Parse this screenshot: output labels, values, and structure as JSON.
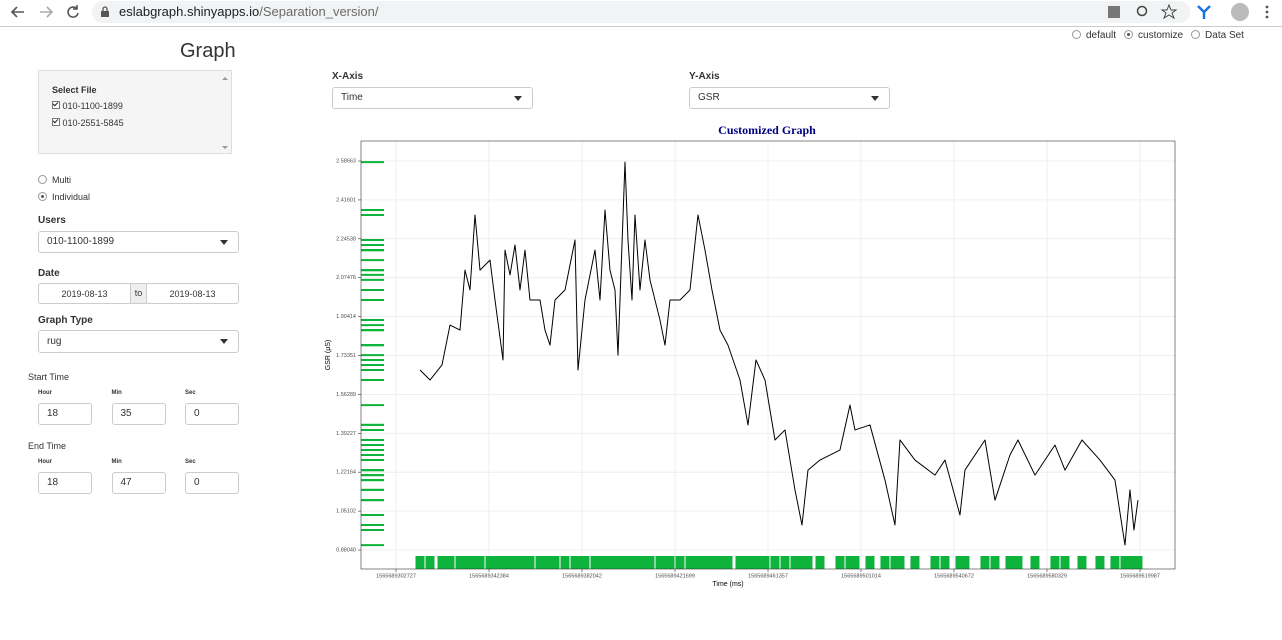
{
  "browser": {
    "url_host": "eslabgraph.shinyapps.io",
    "url_path": "/Separation_version/"
  },
  "mode_options": [
    "default",
    "customize",
    "Data Set"
  ],
  "mode_selected": 1,
  "sidebar": {
    "title": "Graph",
    "select_file_label": "Select File",
    "files": [
      "010-1100-1899",
      "010-2551-5845"
    ],
    "view_options": [
      "Multi",
      "Individual"
    ],
    "view_selected": 1,
    "users_label": "Users",
    "users_value": "010-1100-1899",
    "date_label": "Date",
    "date_from": "2019-08-13",
    "date_sep": "to",
    "date_to": "2019-08-13",
    "graph_type_label": "Graph Type",
    "graph_type_value": "rug",
    "start_time": {
      "label": "Start Time",
      "fields": [
        "Hour",
        "Min",
        "Sec"
      ],
      "values": [
        18,
        35,
        0
      ]
    },
    "end_time": {
      "label": "End Time",
      "fields": [
        "Hour",
        "Min",
        "Sec"
      ],
      "values": [
        18,
        47,
        0
      ]
    }
  },
  "x_axis_label": "X-Axis",
  "x_axis_value": "Time",
  "y_axis_label": "Y-Axis",
  "y_axis_value": "GSR",
  "chart_data": {
    "type": "line",
    "title": "Customized Graph",
    "x_label": "Time (ms)",
    "y_label": "GSR (µS)",
    "color": "#000000",
    "rug": true,
    "rug_color": "#0db33a",
    "grid": true,
    "x": [
      1565689312961,
      1565689317225,
      1565689322341,
      1565689325753,
      1565689330017,
      1565689332149,
      1565689334281,
      1565689336413,
      1565689338545,
      1565689342809,
      1565689344941,
      1565689348352,
      1565689349205,
      1565689351337,
      1565689353469,
      1565689355601,
      1565689357733,
      1565689359865,
      1565689364129,
      1565689366261,
      1565689368393,
      1565689370525,
      1565689374789,
      1565689379053,
      1565689380332,
      1565689383317,
      1565689387581,
      1565689389713,
      1565689391845,
      1565689393977,
      1565689396109,
      1565689397388,
      1565689400373,
      1565689401652,
      1565689403357,
      1565689404637,
      1565689406769,
      1565689408901,
      1565689411033,
      1565689415297,
      1565689417429,
      1565689419561,
      1565689423825,
      1565689428089,
      1565689431500,
      1565689434485,
      1565689437469,
      1565689440881,
      1565689444292,
      1565689449409,
      1565689452820,
      1565689456231,
      1565689460069,
      1565689464333,
      1565689468597,
      1565689472861,
      1565689475845,
      1565689478404,
      1565689483521,
      1565689492049,
      1565689496313,
      1565689498445,
      1565689504841,
      1565689511237,
      1565689515501,
      1565689517633,
      1565689524029,
      1565689532557,
      1565689536821,
      1565689543217,
      1565689545349,
      1565689553877,
      1565689558141,
      1565689564537,
      1565689567948,
      1565689575197,
      1565689583725,
      1565689587989,
      1565689595237,
      1565689602913,
      1565689609309,
      1565689613573,
      1565689615705,
      1565689617410,
      1565689619116
    ],
    "values": [
      1.67,
      1.626,
      1.692,
      1.867,
      1.845,
      2.108,
      2.021,
      2.35,
      2.108,
      2.152,
      1.977,
      1.714,
      2.196,
      2.087,
      2.218,
      2.021,
      2.196,
      1.977,
      1.977,
      1.845,
      1.779,
      1.977,
      2.021,
      2.24,
      1.67,
      1.977,
      2.196,
      1.977,
      2.372,
      2.108,
      2.021,
      1.735,
      2.582,
      2.24,
      1.977,
      2.35,
      2.021,
      2.24,
      2.065,
      1.889,
      1.779,
      1.977,
      1.977,
      2.021,
      2.35,
      2.196,
      2.021,
      1.845,
      1.779,
      1.626,
      1.429,
      1.714,
      1.626,
      1.363,
      1.407,
      1.144,
      0.99,
      1.231,
      1.275,
      1.319,
      1.516,
      1.407,
      1.429,
      1.187,
      0.99,
      1.363,
      1.275,
      1.209,
      1.275,
      1.034,
      1.231,
      1.363,
      1.099,
      1.297,
      1.363,
      1.209,
      1.341,
      1.231,
      1.363,
      1.275,
      1.187,
      0.902,
      1.144,
      0.968,
      1.099
    ],
    "xlim": [
      1565689287802,
      1565689634912
    ],
    "ylim": [
      0.7971,
      2.6744
    ],
    "xticks": [
      1565689302727,
      1565689342384,
      1565689382042,
      1565689421699,
      1565689461357,
      1565689501014,
      1565689540672,
      1565689580329,
      1565689619987
    ],
    "yticks": [
      {
        "value": 0.8804,
        "label": "0.88040"
      },
      1.05102,
      1.22164,
      1.39227,
      1.56289,
      1.73351,
      1.90414,
      2.07476,
      2.24538,
      2.41601,
      2.58663
    ]
  }
}
